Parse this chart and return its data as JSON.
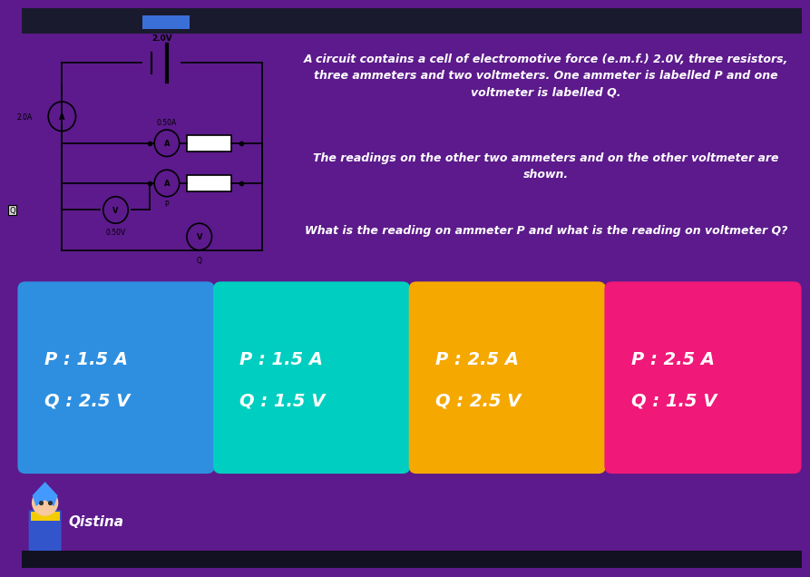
{
  "bg_color": "#5c1a8c",
  "circuit_bg": "#e8e8e8",
  "question_bg": "#4a1278",
  "options": [
    {
      "line1": "P : 1.5 A",
      "line2": "Q : 2.5 V",
      "color": "#2e8fe0"
    },
    {
      "line1": "P : 1.5 A",
      "line2": "Q : 1.5 V",
      "color": "#00cec0"
    },
    {
      "line1": "P : 2.5 A",
      "line2": "Q : 2.5 V",
      "color": "#f5a800"
    },
    {
      "line1": "P : 2.5 A",
      "line2": "Q : 1.5 V",
      "color": "#f01878"
    }
  ],
  "footer_label": "Qistina",
  "text_color": "#ffffff",
  "emf": "2.0V",
  "ammeter_main": "2.0A",
  "ammeter_upper": "0.50A",
  "voltmeter_lower": "0.50V",
  "q_text1": "A circuit contains a cell of electromotive force (e.m.f.) 2.0V, three resistors,",
  "q_text2": "three ammeters and two voltmeters. One ammeter is labelled P and one",
  "q_text3": "voltmeter is labelled Q.",
  "q_text4": "The readings on the other two ammeters and on the other voltmeter are",
  "q_text5": "shown.",
  "q_text6": "What is the reading on ammeter P and what is the reading on voltmeter Q?"
}
